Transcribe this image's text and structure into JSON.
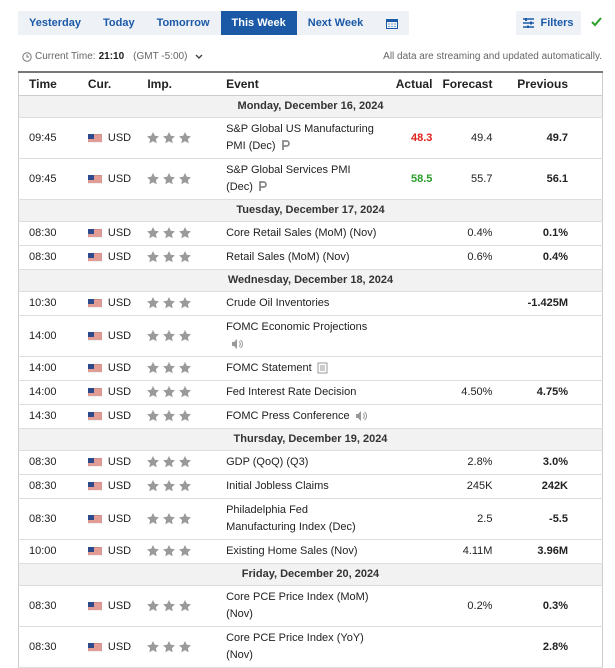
{
  "toolbar": {
    "tabs": [
      "Yesterday",
      "Today",
      "Tomorrow",
      "This Week",
      "Next Week"
    ],
    "selected_tab": 3,
    "filters": "Filters"
  },
  "status": {
    "time_label": "Current Time:",
    "time": "21:10",
    "timezone": "(GMT -5:00)",
    "note": "All data are streaming and updated automatically."
  },
  "table": {
    "columns": [
      "Time",
      "Cur.",
      "Imp.",
      "Event",
      "Actual",
      "Forecast",
      "Previous"
    ],
    "days": [
      {
        "date": "Monday, December 16, 2024",
        "events": [
          {
            "time": "09:45",
            "currency": "USD",
            "event": "S&P Global US Manufacturing PMI (Dec)",
            "icon": "preliminary",
            "actual": "48.3",
            "actual_color": "#e0201b",
            "forecast": "49.4",
            "previous": "49.7"
          },
          {
            "time": "09:45",
            "currency": "USD",
            "event": "S&P Global Services PMI (Dec)",
            "icon": "preliminary",
            "actual": "58.5",
            "actual_color": "#2a9d2a",
            "forecast": "55.7",
            "previous": "56.1"
          }
        ]
      },
      {
        "date": "Tuesday, December 17, 2024",
        "events": [
          {
            "time": "08:30",
            "currency": "USD",
            "event": "Core Retail Sales (MoM) (Nov)",
            "forecast": "0.4%",
            "previous": "0.1%"
          },
          {
            "time": "08:30",
            "currency": "USD",
            "event": "Retail Sales (MoM) (Nov)",
            "forecast": "0.6%",
            "previous": "0.4%"
          }
        ]
      },
      {
        "date": "Wednesday, December 18, 2024",
        "events": [
          {
            "time": "10:30",
            "currency": "USD",
            "event": "Crude Oil Inventories",
            "previous": "-1.425M"
          },
          {
            "time": "14:00",
            "currency": "USD",
            "event": "FOMC Economic Projections",
            "icon": "speech"
          },
          {
            "time": "14:00",
            "currency": "USD",
            "event": "FOMC Statement",
            "icon": "report"
          },
          {
            "time": "14:00",
            "currency": "USD",
            "event": "Fed Interest Rate Decision",
            "forecast": "4.50%",
            "previous": "4.75%"
          },
          {
            "time": "14:30",
            "currency": "USD",
            "event": "FOMC Press Conference",
            "icon": "speech"
          }
        ]
      },
      {
        "date": "Thursday, December 19, 2024",
        "events": [
          {
            "time": "08:30",
            "currency": "USD",
            "event": "GDP (QoQ) (Q3)",
            "forecast": "2.8%",
            "previous": "3.0%"
          },
          {
            "time": "08:30",
            "currency": "USD",
            "event": "Initial Jobless Claims",
            "forecast": "245K",
            "previous": "242K"
          },
          {
            "time": "08:30",
            "currency": "USD",
            "event": "Philadelphia Fed Manufacturing Index (Dec)",
            "forecast": "2.5",
            "previous": "-5.5"
          },
          {
            "time": "10:00",
            "currency": "USD",
            "event": "Existing Home Sales (Nov)",
            "forecast": "4.11M",
            "previous": "3.96M"
          }
        ]
      },
      {
        "date": "Friday, December 20, 2024",
        "events": [
          {
            "time": "08:30",
            "currency": "USD",
            "event": "Core PCE Price Index (MoM) (Nov)",
            "forecast": "0.2%",
            "previous": "0.3%"
          },
          {
            "time": "08:30",
            "currency": "USD",
            "event": "Core PCE Price Index (YoY) (Nov)",
            "previous": "2.8%"
          }
        ]
      }
    ]
  }
}
